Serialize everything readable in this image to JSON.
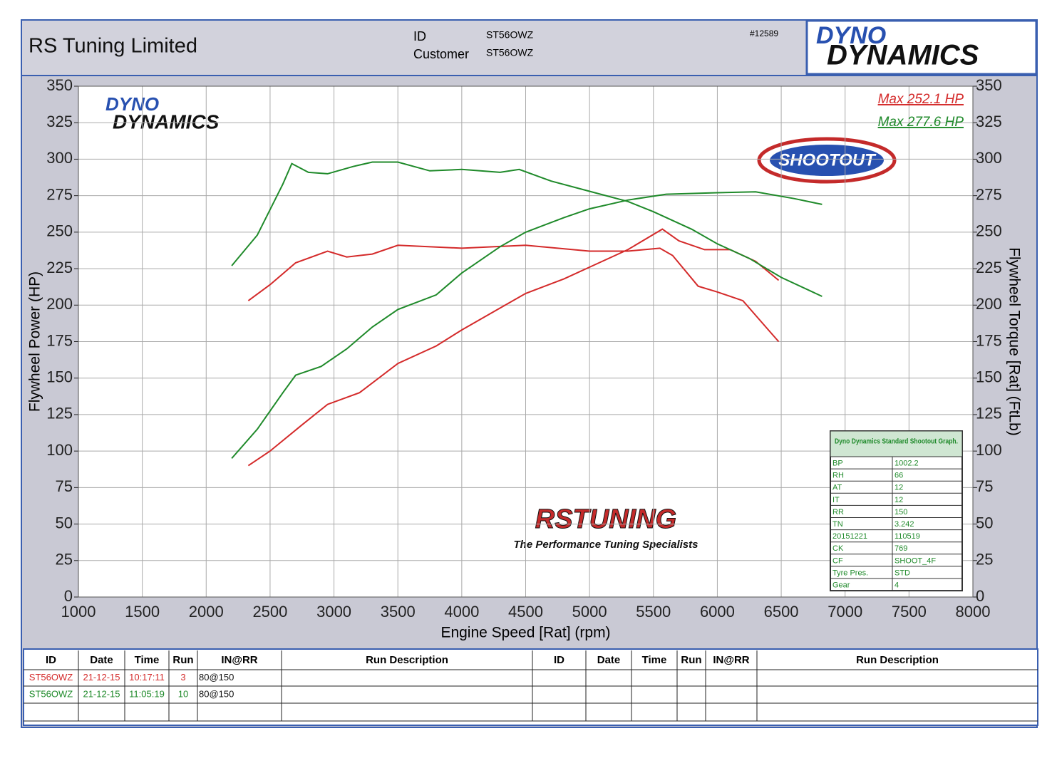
{
  "header": {
    "company": "RS Tuning Limited",
    "id_label": "ID",
    "id_value": "ST56OWZ",
    "customer_label": "Customer",
    "customer_value": "ST56OWZ",
    "number": "#12589"
  },
  "logos": {
    "dyno_top": "DYNO",
    "dyno_bottom": "DYNAMICS",
    "shootout": "SHOOTOUT",
    "rstuning": "RSTUNING",
    "rstuning_tagline": "The Performance Tuning Specialists"
  },
  "chart_data": {
    "type": "line",
    "xlabel": "Engine Speed [Rat] (rpm)",
    "ylabel": "Flywheel Power (HP)",
    "y2label": "Flywheel Torque [Rat] (FtLb)",
    "xlim": [
      1000,
      8000
    ],
    "xticks": [
      1000,
      1500,
      2000,
      2500,
      3000,
      3500,
      4000,
      4500,
      5000,
      5500,
      6000,
      6500,
      7000,
      7500,
      8000
    ],
    "ylim": [
      0,
      350
    ],
    "yticks": [
      0,
      25,
      50,
      75,
      100,
      125,
      150,
      175,
      200,
      225,
      250,
      275,
      300,
      325,
      350
    ],
    "y2lim": [
      0,
      350
    ],
    "y2ticks": [
      0,
      25,
      50,
      75,
      100,
      125,
      150,
      175,
      200,
      225,
      250,
      275,
      300,
      325,
      350
    ],
    "grid": true,
    "annotations": [
      {
        "text": "Max 252.1 HP",
        "color": "#d42a2a"
      },
      {
        "text": "Max 277.6 HP",
        "color": "#1f8a2a"
      }
    ],
    "series": [
      {
        "color": "#d42a2a",
        "axis": "y",
        "x": [
          2330,
          2500,
          2750,
          2950,
          3200,
          3500,
          3800,
          4000,
          4300,
          4500,
          4800,
          5000,
          5300,
          5570,
          5700,
          5900,
          6100,
          6300,
          6480
        ],
        "values": [
          90,
          100,
          118,
          132,
          140,
          160,
          172,
          183,
          198,
          208,
          218,
          226,
          238,
          252.1,
          244,
          238,
          238,
          230,
          217
        ]
      },
      {
        "color": "#d42a2a",
        "axis": "y2",
        "x": [
          2330,
          2500,
          2700,
          2950,
          3100,
          3300,
          3500,
          4000,
          4500,
          5000,
          5300,
          5550,
          5650,
          5850,
          6000,
          6200,
          6400,
          6480
        ],
        "values": [
          203,
          214,
          229,
          237,
          233,
          235,
          241,
          239,
          241,
          237,
          237,
          239,
          234,
          213,
          209,
          203,
          183,
          175
        ]
      },
      {
        "color": "#1f8a2a",
        "axis": "y",
        "x": [
          2200,
          2400,
          2600,
          2700,
          2900,
          3100,
          3300,
          3500,
          3800,
          4000,
          4300,
          4500,
          4800,
          5000,
          5300,
          5600,
          6000,
          6300,
          6600,
          6820
        ],
        "values": [
          95,
          115,
          140,
          152,
          158,
          170,
          185,
          197,
          207,
          222,
          240,
          250,
          260,
          266,
          272,
          276,
          277,
          277.6,
          273,
          269
        ]
      },
      {
        "color": "#1f8a2a",
        "axis": "y2",
        "x": [
          2200,
          2400,
          2600,
          2670,
          2800,
          2950,
          3150,
          3300,
          3500,
          3750,
          4000,
          4300,
          4450,
          4700,
          5000,
          5300,
          5500,
          5800,
          6000,
          6250,
          6500,
          6820
        ],
        "values": [
          227,
          248,
          283,
          297,
          291,
          290,
          295,
          298,
          298,
          292,
          293,
          291,
          293,
          285,
          278,
          271,
          264,
          252,
          242,
          232,
          219,
          206
        ]
      }
    ]
  },
  "info_table": {
    "title": "Dyno Dynamics Standard Shootout Graph.",
    "rows": [
      [
        "BP",
        "1002.2"
      ],
      [
        "RH",
        "66"
      ],
      [
        "AT",
        "12"
      ],
      [
        "IT",
        "12"
      ],
      [
        "RR",
        "150"
      ],
      [
        "TN",
        "3.242"
      ],
      [
        "20151221",
        "110519"
      ],
      [
        "CK",
        "769"
      ],
      [
        "CF",
        "SHOOT_4F"
      ],
      [
        "Tyre Pres.",
        "STD"
      ],
      [
        "Gear",
        "4"
      ]
    ]
  },
  "runs_table": {
    "headers": [
      "ID",
      "Date",
      "Time",
      "Run",
      "IN@RR",
      "Run Description",
      "ID",
      "Date",
      "Time",
      "Run",
      "IN@RR",
      "Run Description"
    ],
    "rows": [
      {
        "color": "#d42a2a",
        "cells": [
          "ST56OWZ",
          "21-12-15",
          "10:17:11",
          "3",
          "80@150"
        ]
      },
      {
        "color": "#1f8a2a",
        "cells": [
          "ST56OWZ",
          "21-12-15",
          "11:05:19",
          "10",
          "80@150"
        ]
      }
    ]
  }
}
